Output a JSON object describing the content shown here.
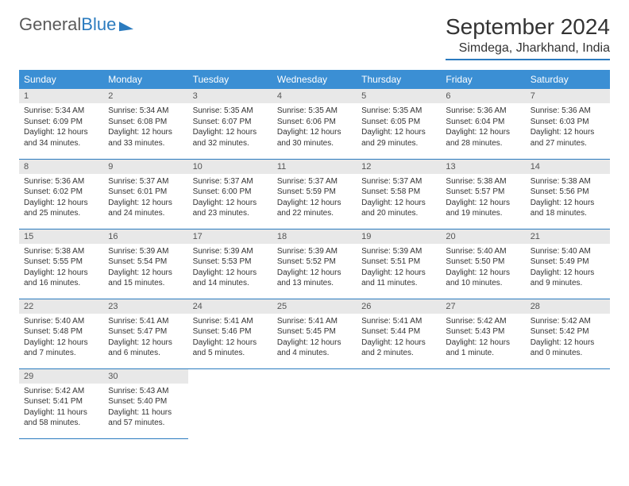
{
  "logo": {
    "part1": "General",
    "part2": "Blue"
  },
  "title": "September 2024",
  "location": "Simdega, Jharkhand, India",
  "colors": {
    "header_bg": "#3b8fd4",
    "border": "#2b7bbf",
    "daynum_bg": "#e8e8e8",
    "text": "#333333"
  },
  "weekdays": [
    "Sunday",
    "Monday",
    "Tuesday",
    "Wednesday",
    "Thursday",
    "Friday",
    "Saturday"
  ],
  "weeks": [
    [
      {
        "n": "1",
        "sr": "Sunrise: 5:34 AM",
        "ss": "Sunset: 6:09 PM",
        "dl": "Daylight: 12 hours and 34 minutes."
      },
      {
        "n": "2",
        "sr": "Sunrise: 5:34 AM",
        "ss": "Sunset: 6:08 PM",
        "dl": "Daylight: 12 hours and 33 minutes."
      },
      {
        "n": "3",
        "sr": "Sunrise: 5:35 AM",
        "ss": "Sunset: 6:07 PM",
        "dl": "Daylight: 12 hours and 32 minutes."
      },
      {
        "n": "4",
        "sr": "Sunrise: 5:35 AM",
        "ss": "Sunset: 6:06 PM",
        "dl": "Daylight: 12 hours and 30 minutes."
      },
      {
        "n": "5",
        "sr": "Sunrise: 5:35 AM",
        "ss": "Sunset: 6:05 PM",
        "dl": "Daylight: 12 hours and 29 minutes."
      },
      {
        "n": "6",
        "sr": "Sunrise: 5:36 AM",
        "ss": "Sunset: 6:04 PM",
        "dl": "Daylight: 12 hours and 28 minutes."
      },
      {
        "n": "7",
        "sr": "Sunrise: 5:36 AM",
        "ss": "Sunset: 6:03 PM",
        "dl": "Daylight: 12 hours and 27 minutes."
      }
    ],
    [
      {
        "n": "8",
        "sr": "Sunrise: 5:36 AM",
        "ss": "Sunset: 6:02 PM",
        "dl": "Daylight: 12 hours and 25 minutes."
      },
      {
        "n": "9",
        "sr": "Sunrise: 5:37 AM",
        "ss": "Sunset: 6:01 PM",
        "dl": "Daylight: 12 hours and 24 minutes."
      },
      {
        "n": "10",
        "sr": "Sunrise: 5:37 AM",
        "ss": "Sunset: 6:00 PM",
        "dl": "Daylight: 12 hours and 23 minutes."
      },
      {
        "n": "11",
        "sr": "Sunrise: 5:37 AM",
        "ss": "Sunset: 5:59 PM",
        "dl": "Daylight: 12 hours and 22 minutes."
      },
      {
        "n": "12",
        "sr": "Sunrise: 5:37 AM",
        "ss": "Sunset: 5:58 PM",
        "dl": "Daylight: 12 hours and 20 minutes."
      },
      {
        "n": "13",
        "sr": "Sunrise: 5:38 AM",
        "ss": "Sunset: 5:57 PM",
        "dl": "Daylight: 12 hours and 19 minutes."
      },
      {
        "n": "14",
        "sr": "Sunrise: 5:38 AM",
        "ss": "Sunset: 5:56 PM",
        "dl": "Daylight: 12 hours and 18 minutes."
      }
    ],
    [
      {
        "n": "15",
        "sr": "Sunrise: 5:38 AM",
        "ss": "Sunset: 5:55 PM",
        "dl": "Daylight: 12 hours and 16 minutes."
      },
      {
        "n": "16",
        "sr": "Sunrise: 5:39 AM",
        "ss": "Sunset: 5:54 PM",
        "dl": "Daylight: 12 hours and 15 minutes."
      },
      {
        "n": "17",
        "sr": "Sunrise: 5:39 AM",
        "ss": "Sunset: 5:53 PM",
        "dl": "Daylight: 12 hours and 14 minutes."
      },
      {
        "n": "18",
        "sr": "Sunrise: 5:39 AM",
        "ss": "Sunset: 5:52 PM",
        "dl": "Daylight: 12 hours and 13 minutes."
      },
      {
        "n": "19",
        "sr": "Sunrise: 5:39 AM",
        "ss": "Sunset: 5:51 PM",
        "dl": "Daylight: 12 hours and 11 minutes."
      },
      {
        "n": "20",
        "sr": "Sunrise: 5:40 AM",
        "ss": "Sunset: 5:50 PM",
        "dl": "Daylight: 12 hours and 10 minutes."
      },
      {
        "n": "21",
        "sr": "Sunrise: 5:40 AM",
        "ss": "Sunset: 5:49 PM",
        "dl": "Daylight: 12 hours and 9 minutes."
      }
    ],
    [
      {
        "n": "22",
        "sr": "Sunrise: 5:40 AM",
        "ss": "Sunset: 5:48 PM",
        "dl": "Daylight: 12 hours and 7 minutes."
      },
      {
        "n": "23",
        "sr": "Sunrise: 5:41 AM",
        "ss": "Sunset: 5:47 PM",
        "dl": "Daylight: 12 hours and 6 minutes."
      },
      {
        "n": "24",
        "sr": "Sunrise: 5:41 AM",
        "ss": "Sunset: 5:46 PM",
        "dl": "Daylight: 12 hours and 5 minutes."
      },
      {
        "n": "25",
        "sr": "Sunrise: 5:41 AM",
        "ss": "Sunset: 5:45 PM",
        "dl": "Daylight: 12 hours and 4 minutes."
      },
      {
        "n": "26",
        "sr": "Sunrise: 5:41 AM",
        "ss": "Sunset: 5:44 PM",
        "dl": "Daylight: 12 hours and 2 minutes."
      },
      {
        "n": "27",
        "sr": "Sunrise: 5:42 AM",
        "ss": "Sunset: 5:43 PM",
        "dl": "Daylight: 12 hours and 1 minute."
      },
      {
        "n": "28",
        "sr": "Sunrise: 5:42 AM",
        "ss": "Sunset: 5:42 PM",
        "dl": "Daylight: 12 hours and 0 minutes."
      }
    ],
    [
      {
        "n": "29",
        "sr": "Sunrise: 5:42 AM",
        "ss": "Sunset: 5:41 PM",
        "dl": "Daylight: 11 hours and 58 minutes."
      },
      {
        "n": "30",
        "sr": "Sunrise: 5:43 AM",
        "ss": "Sunset: 5:40 PM",
        "dl": "Daylight: 11 hours and 57 minutes."
      },
      null,
      null,
      null,
      null,
      null
    ]
  ]
}
